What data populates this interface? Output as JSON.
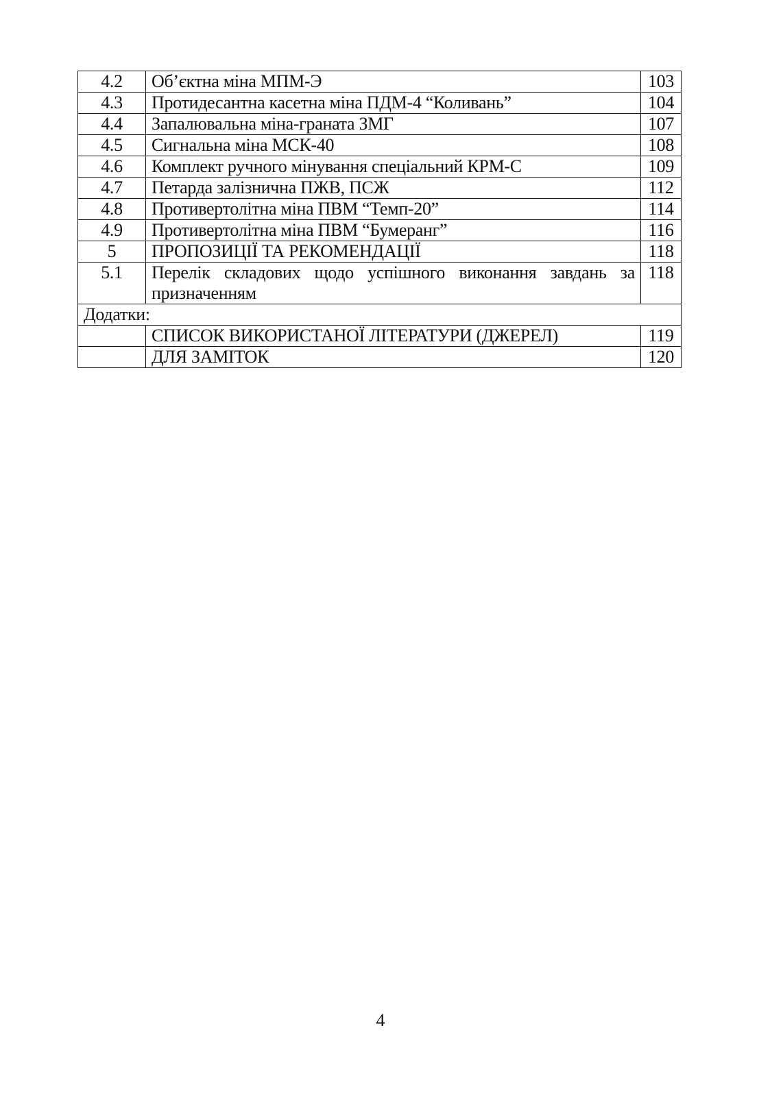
{
  "toc": {
    "rows": [
      {
        "num": "4.2",
        "title": "Об’єктна міна МПМ-Э",
        "page": "103"
      },
      {
        "num": "4.3",
        "title": "Протидесантна касетна міна ПДМ-4 “Коливань”",
        "page": "104"
      },
      {
        "num": "4.4",
        "title": "Запалювальна міна-граната ЗМГ",
        "page": "107"
      },
      {
        "num": "4.5",
        "title": "Сигнальна міна МСК-40",
        "page": "108"
      },
      {
        "num": "4.6",
        "title": "Комплект ручного мінування спеціальний КРМ-С",
        "page": "109"
      },
      {
        "num": "4.7",
        "title": "Петарда залізнична ПЖВ, ПСЖ",
        "page": "112"
      },
      {
        "num": "4.8",
        "title": "Противертолітна міна ПВМ “Темп-20”",
        "page": "114"
      },
      {
        "num": "4.9",
        "title": "Противертолітна міна ПВМ “Бумеранг”",
        "page": "116"
      },
      {
        "num": "5",
        "title": "ПРОПОЗИЦІЇ ТА РЕКОМЕНДАЦІЇ",
        "page": "118"
      },
      {
        "num": "5.1",
        "title": "Перелік складових щодо успішного виконання завдань за призначенням",
        "page": "118"
      }
    ],
    "appendix_label": "Додатки:",
    "appendix_rows": [
      {
        "title": "СПИСОК ВИКОРИСТАНОЇ ЛІТЕРАТУРИ (ДЖЕРЕЛ)",
        "page": "119"
      },
      {
        "title": "ДЛЯ ЗАМІТОК",
        "page": "120"
      }
    ]
  },
  "page_number": "4"
}
